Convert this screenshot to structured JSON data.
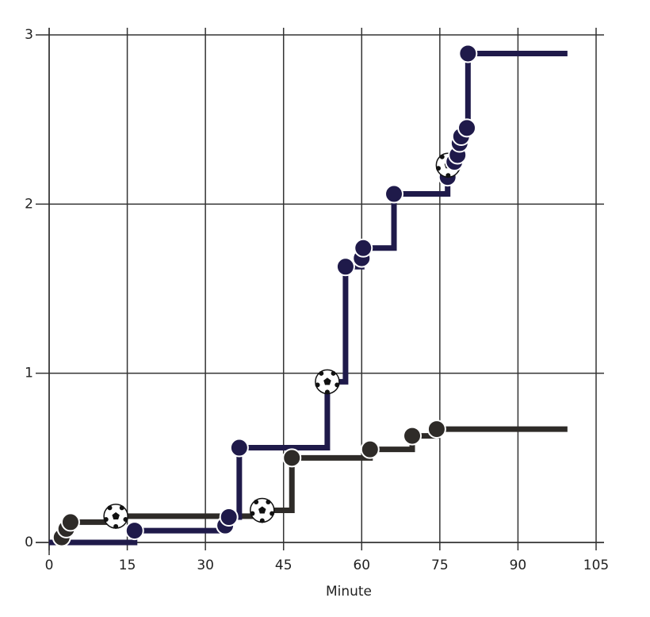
{
  "chart_data": {
    "type": "step",
    "xlabel": "Minute",
    "xlim": [
      0,
      105
    ],
    "xticks": [
      0,
      15,
      30,
      45,
      60,
      75,
      90,
      105
    ],
    "ylim": [
      0,
      3
    ],
    "yticks": [
      0,
      1,
      2,
      3
    ],
    "grid": true,
    "series": [
      {
        "color": "#1f1a4a",
        "x": [
          0,
          16.4,
          33.8,
          34.5,
          36.5,
          53.4,
          56.9,
          60.0,
          60.3,
          66.2,
          76.5,
          76.6,
          77.8,
          78.4,
          78.8,
          79.1,
          80.2,
          80.4,
          99.5
        ],
        "values": [
          0,
          0.07,
          0.1,
          0.15,
          0.56,
          0.95,
          1.63,
          1.68,
          1.74,
          2.06,
          2.16,
          2.23,
          2.25,
          2.29,
          2.36,
          2.4,
          2.45,
          2.89,
          2.89
        ],
        "markers": [
          "none",
          "shot",
          "shot",
          "shot",
          "shot",
          "goal",
          "shot",
          "shot",
          "shot",
          "shot",
          "shot",
          "goal",
          "shot",
          "shot",
          "shot",
          "shot",
          "shot",
          "shot",
          "none"
        ]
      },
      {
        "color": "#2e2b28",
        "x": [
          0,
          2.4,
          3.3,
          4.1,
          12.8,
          40.9,
          46.6,
          61.6,
          69.7,
          74.4,
          99.5
        ],
        "values": [
          0,
          0.03,
          0.08,
          0.12,
          0.155,
          0.19,
          0.5,
          0.55,
          0.63,
          0.67,
          0.67
        ],
        "markers": [
          "none",
          "shot",
          "shot",
          "shot",
          "goal",
          "goal",
          "shot",
          "shot",
          "shot",
          "shot",
          "none"
        ]
      }
    ]
  }
}
